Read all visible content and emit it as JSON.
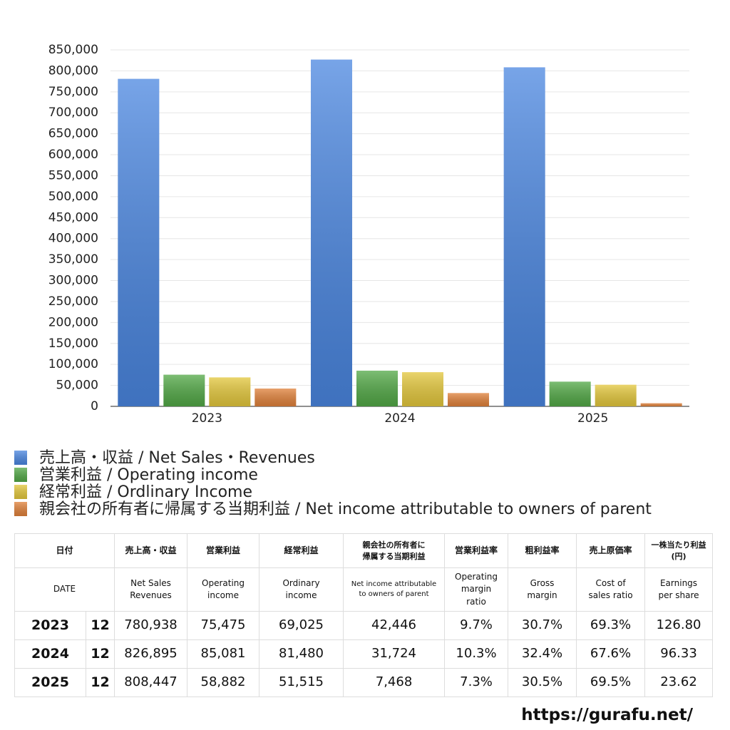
{
  "chart_data": {
    "type": "bar",
    "categories": [
      "2023",
      "2024",
      "2025"
    ],
    "series": [
      {
        "name": "売上高・収益 / Net Sales・Revenues",
        "color": "#4a86e0",
        "values": [
          780938,
          826895,
          808447
        ]
      },
      {
        "name": "営業利益 / Operating income",
        "color": "#52a846",
        "values": [
          75475,
          85081,
          58882
        ]
      },
      {
        "name": "経常利益 / Ordlinary Income",
        "color": "#e3c73c",
        "values": [
          69025,
          81480,
          51515
        ]
      },
      {
        "name": "親会社の所有者に帰属する当期利益 / Net income attributable to owners of parent",
        "color": "#e0813a",
        "values": [
          42446,
          31724,
          7468
        ]
      }
    ],
    "ylim": [
      0,
      850000
    ],
    "yticks": [
      {
        "value": 0,
        "label": "0"
      },
      {
        "value": 50000,
        "label": "50,000"
      },
      {
        "value": 100000,
        "label": "100,000"
      },
      {
        "value": 150000,
        "label": "150,000"
      },
      {
        "value": 200000,
        "label": "200,000"
      },
      {
        "value": 250000,
        "label": "250,000"
      },
      {
        "value": 300000,
        "label": "300,000"
      },
      {
        "value": 350000,
        "label": "350,000"
      },
      {
        "value": 400000,
        "label": "400,000"
      },
      {
        "value": 450000,
        "label": "450,000"
      },
      {
        "value": 500000,
        "label": "500,000"
      },
      {
        "value": 550000,
        "label": "550,000"
      },
      {
        "value": 600000,
        "label": "600,000"
      },
      {
        "value": 650000,
        "label": "650,000"
      },
      {
        "value": 700000,
        "label": "700,000"
      },
      {
        "value": 750000,
        "label": "750,000"
      },
      {
        "value": 800000,
        "label": "800,000"
      },
      {
        "value": 850000,
        "label": "850,000"
      }
    ],
    "grid": true
  },
  "table": {
    "header_ja": [
      "日付",
      "売上高・収益",
      "営業利益",
      "経常利益",
      "親会社の所有者に\n帰属する当期利益",
      "営業利益率",
      "粗利益率",
      "売上原価率",
      "一株当たり利益\n(円)"
    ],
    "header_en": [
      "DATE",
      "Net Sales\nRevenues",
      "Operating\nincome",
      "Ordinary\nincome",
      "Net income attributable\nto owners of parent",
      "Operating\nmargin\nratio",
      "Gross\nmargin",
      "Cost of\nsales ratio",
      "Earnings\nper share"
    ],
    "rows": [
      [
        "2023",
        "12",
        "780,938",
        "75,475",
        "69,025",
        "42,446",
        "9.7%",
        "30.7%",
        "69.3%",
        "126.80"
      ],
      [
        "2024",
        "12",
        "826,895",
        "85,081",
        "81,480",
        "31,724",
        "10.3%",
        "32.4%",
        "67.6%",
        "96.33"
      ],
      [
        "2025",
        "12",
        "808,447",
        "58,882",
        "51,515",
        "7,468",
        "7.3%",
        "30.5%",
        "69.5%",
        "23.62"
      ]
    ]
  },
  "footer": "https://gurafu.net/"
}
